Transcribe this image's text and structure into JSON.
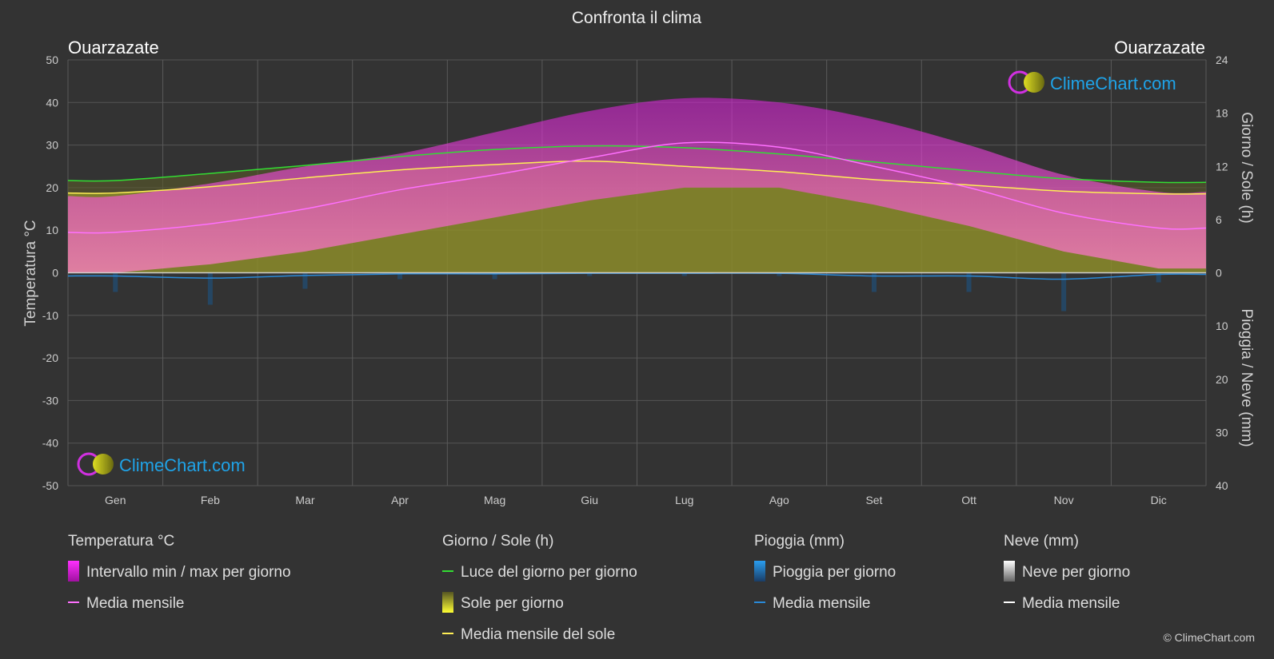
{
  "title": "Confronta il clima",
  "city_left": "Ouarzazate",
  "city_right": "Ouarzazate",
  "logo_text": "ClimeChart.com",
  "copyright": "© ClimeChart.com",
  "axis": {
    "left_label": "Temperatura °C",
    "right_top_label": "Giorno / Sole (h)",
    "right_bottom_label": "Pioggia / Neve (mm)",
    "left_ticks": [
      "50",
      "40",
      "30",
      "20",
      "10",
      "0",
      "-10",
      "-20",
      "-30",
      "-40",
      "-50"
    ],
    "right_top_ticks": [
      "24",
      "18",
      "12",
      "6",
      "0"
    ],
    "right_bottom_ticks": [
      "10",
      "20",
      "30",
      "40"
    ]
  },
  "legend": {
    "temp": {
      "head": "Temperatura °C",
      "item1": "Intervallo min / max per giorno",
      "item2": "Media mensile"
    },
    "sun": {
      "head": "Giorno / Sole (h)",
      "item1": "Luce del giorno per giorno",
      "item2": "Sole per giorno",
      "item3": "Media mensile del sole"
    },
    "rain": {
      "head": "Pioggia (mm)",
      "item1": "Pioggia per giorno",
      "item2": "Media mensile"
    },
    "snow": {
      "head": "Neve (mm)",
      "item1": "Neve per giorno",
      "item2": "Media mensile"
    }
  },
  "colors": {
    "temp_range": "#e020e0",
    "temp_mean": "#ff70ff",
    "daylight": "#33dd33",
    "sun_fill": "#9a9a2a",
    "sun_mean": "#ffee55",
    "rain": "#2a8ad8",
    "snow": "#ffffff"
  },
  "chart_data": {
    "type": "area",
    "categories": [
      "Gen",
      "Feb",
      "Mar",
      "Apr",
      "Mag",
      "Giu",
      "Lug",
      "Ago",
      "Set",
      "Ott",
      "Nov",
      "Dic"
    ],
    "temp_ylim": [
      -50,
      50
    ],
    "hours_ylim": [
      0,
      24
    ],
    "precip_ylim": [
      0,
      40
    ],
    "series": [
      {
        "name": "Media mensile",
        "axis": "temp",
        "values": [
          9.5,
          11.5,
          15,
          19.5,
          23,
          27,
          30.5,
          29.5,
          25,
          20,
          14,
          10.5
        ]
      },
      {
        "name": "Intervallo min / max per giorno",
        "axis": "temp",
        "min": [
          0,
          2,
          5,
          9,
          13,
          17,
          20,
          20,
          16,
          11,
          5,
          1
        ],
        "max": [
          18,
          21,
          25,
          28,
          33,
          38,
          41,
          40,
          36,
          30,
          23,
          19
        ]
      },
      {
        "name": "Luce del giorno per giorno",
        "axis": "hours",
        "values": [
          10.4,
          11.2,
          12.1,
          13.1,
          13.9,
          14.3,
          14.1,
          13.4,
          12.5,
          11.5,
          10.6,
          10.2
        ]
      },
      {
        "name": "Sole per giorno",
        "axis": "hours",
        "values": [
          9.0,
          9.7,
          10.7,
          11.6,
          12.2,
          12.6,
          12.0,
          11.4,
          10.5,
          9.9,
          9.2,
          8.9
        ]
      },
      {
        "name": "Media mensile del sole",
        "axis": "hours",
        "values": [
          9.0,
          9.7,
          10.7,
          11.6,
          12.2,
          12.6,
          12.0,
          11.4,
          10.5,
          9.9,
          9.2,
          8.9
        ]
      },
      {
        "name": "Pioggia - Media mensile",
        "axis": "precip",
        "values": [
          0.6,
          1.0,
          0.5,
          0.2,
          0.2,
          0.1,
          0.1,
          0.1,
          0.6,
          0.6,
          1.2,
          0.3
        ]
      },
      {
        "name": "Neve - Media mensile",
        "axis": "precip",
        "values": [
          0,
          0,
          0,
          0,
          0,
          0,
          0,
          0,
          0,
          0,
          0,
          0
        ]
      }
    ]
  }
}
